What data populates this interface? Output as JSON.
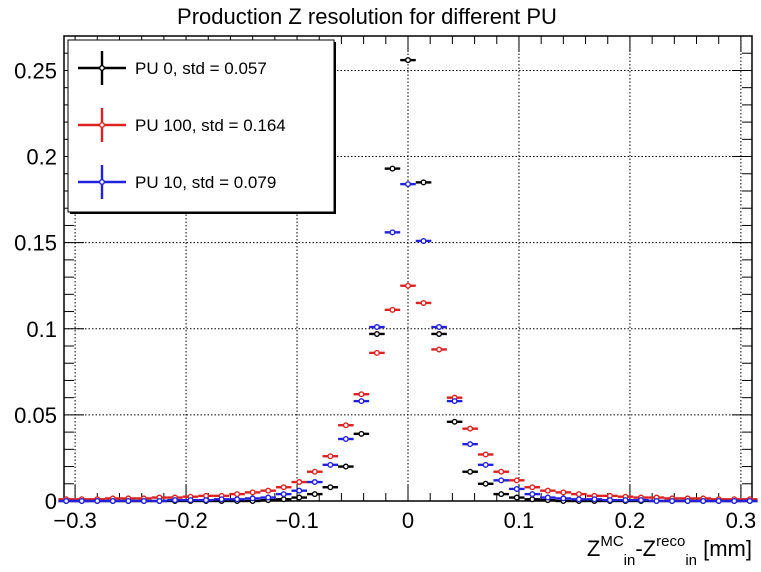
{
  "chart_data": {
    "type": "scatter",
    "title": "Production Z resolution for different PU",
    "xlabel": {
      "z": "Z",
      "sub1": "in",
      "sup1": "MC",
      "dash": "-Z",
      "sub2": "in",
      "sup2": "reco",
      "unit": " [mm]"
    },
    "ylabel": "",
    "xlim": [
      -0.31,
      0.31
    ],
    "ylim": [
      0,
      0.27
    ],
    "x_ticks": [
      -0.3,
      -0.2,
      -0.1,
      0,
      0.1,
      0.2,
      0.3
    ],
    "x_tick_labels": [
      "−0.3",
      "−0.2",
      "−0.1",
      "0",
      "0.1",
      "0.2",
      "0.3"
    ],
    "y_ticks": [
      0,
      0.05,
      0.1,
      0.15,
      0.2,
      0.25
    ],
    "y_tick_labels": [
      "0",
      "0.05",
      "0.1",
      "0.15",
      "0.2",
      "0.25"
    ],
    "grid": true,
    "legend_position": "top-left",
    "bin_width": 0.014,
    "series": [
      {
        "name": "PU 0, std = 0.057",
        "color": "#000000",
        "points": [
          [
            -0.308,
            0
          ],
          [
            -0.294,
            0
          ],
          [
            -0.28,
            0
          ],
          [
            -0.266,
            0
          ],
          [
            -0.252,
            0
          ],
          [
            -0.238,
            0
          ],
          [
            -0.224,
            0
          ],
          [
            -0.21,
            0
          ],
          [
            -0.196,
            0
          ],
          [
            -0.182,
            0
          ],
          [
            -0.168,
            0
          ],
          [
            -0.154,
            0
          ],
          [
            -0.14,
            0
          ],
          [
            -0.126,
            0.0005
          ],
          [
            -0.112,
            0.001
          ],
          [
            -0.098,
            0.002
          ],
          [
            -0.084,
            0.004
          ],
          [
            -0.07,
            0.008
          ],
          [
            -0.056,
            0.02
          ],
          [
            -0.042,
            0.039
          ],
          [
            -0.028,
            0.097
          ],
          [
            -0.014,
            0.193
          ],
          [
            0,
            0.256
          ],
          [
            0.014,
            0.185
          ],
          [
            0.028,
            0.097
          ],
          [
            0.042,
            0.046
          ],
          [
            0.056,
            0.017
          ],
          [
            0.07,
            0.01
          ],
          [
            0.084,
            0.004
          ],
          [
            0.098,
            0.002
          ],
          [
            0.112,
            0.001
          ],
          [
            0.126,
            0.0005
          ],
          [
            0.14,
            0
          ],
          [
            0.154,
            0
          ],
          [
            0.168,
            0
          ],
          [
            0.182,
            0
          ],
          [
            0.196,
            0
          ],
          [
            0.21,
            0
          ],
          [
            0.224,
            0
          ],
          [
            0.238,
            0
          ],
          [
            0.252,
            0
          ],
          [
            0.266,
            0
          ],
          [
            0.28,
            0
          ],
          [
            0.294,
            0
          ],
          [
            0.308,
            0
          ]
        ]
      },
      {
        "name": "PU 100, std = 0.164",
        "color": "#dd2222",
        "points": [
          [
            -0.308,
            0.001
          ],
          [
            -0.294,
            0.001
          ],
          [
            -0.28,
            0.001
          ],
          [
            -0.266,
            0.0015
          ],
          [
            -0.252,
            0.0015
          ],
          [
            -0.238,
            0.0015
          ],
          [
            -0.224,
            0.002
          ],
          [
            -0.21,
            0.002
          ],
          [
            -0.196,
            0.0025
          ],
          [
            -0.182,
            0.003
          ],
          [
            -0.168,
            0.003
          ],
          [
            -0.154,
            0.004
          ],
          [
            -0.14,
            0.005
          ],
          [
            -0.126,
            0.006
          ],
          [
            -0.112,
            0.008
          ],
          [
            -0.098,
            0.011
          ],
          [
            -0.084,
            0.017
          ],
          [
            -0.07,
            0.026
          ],
          [
            -0.056,
            0.044
          ],
          [
            -0.042,
            0.062
          ],
          [
            -0.028,
            0.086
          ],
          [
            -0.014,
            0.111
          ],
          [
            0,
            0.125
          ],
          [
            0.014,
            0.115
          ],
          [
            0.028,
            0.088
          ],
          [
            0.042,
            0.06
          ],
          [
            0.056,
            0.042
          ],
          [
            0.07,
            0.027
          ],
          [
            0.084,
            0.017
          ],
          [
            0.098,
            0.012
          ],
          [
            0.112,
            0.008
          ],
          [
            0.126,
            0.006
          ],
          [
            0.14,
            0.005
          ],
          [
            0.154,
            0.004
          ],
          [
            0.168,
            0.003
          ],
          [
            0.182,
            0.003
          ],
          [
            0.196,
            0.0025
          ],
          [
            0.21,
            0.002
          ],
          [
            0.224,
            0.002
          ],
          [
            0.238,
            0.0015
          ],
          [
            0.252,
            0.0015
          ],
          [
            0.266,
            0.0015
          ],
          [
            0.28,
            0.001
          ],
          [
            0.294,
            0.001
          ],
          [
            0.308,
            0.001
          ]
        ]
      },
      {
        "name": "PU 10, std = 0.079",
        "color": "#2222dd",
        "points": [
          [
            -0.308,
            0
          ],
          [
            -0.294,
            0
          ],
          [
            -0.28,
            0
          ],
          [
            -0.266,
            0
          ],
          [
            -0.252,
            0
          ],
          [
            -0.238,
            0
          ],
          [
            -0.224,
            0
          ],
          [
            -0.21,
            0.0005
          ],
          [
            -0.196,
            0.0005
          ],
          [
            -0.182,
            0.0005
          ],
          [
            -0.168,
            0.001
          ],
          [
            -0.154,
            0.001
          ],
          [
            -0.14,
            0.0015
          ],
          [
            -0.126,
            0.002
          ],
          [
            -0.112,
            0.004
          ],
          [
            -0.098,
            0.006
          ],
          [
            -0.084,
            0.011
          ],
          [
            -0.07,
            0.021
          ],
          [
            -0.056,
            0.036
          ],
          [
            -0.042,
            0.058
          ],
          [
            -0.028,
            0.101
          ],
          [
            -0.014,
            0.156
          ],
          [
            0,
            0.184
          ],
          [
            0.014,
            0.151
          ],
          [
            0.028,
            0.101
          ],
          [
            0.042,
            0.058
          ],
          [
            0.056,
            0.033
          ],
          [
            0.07,
            0.021
          ],
          [
            0.084,
            0.012
          ],
          [
            0.098,
            0.007
          ],
          [
            0.112,
            0.004
          ],
          [
            0.126,
            0.002
          ],
          [
            0.14,
            0.0015
          ],
          [
            0.154,
            0.001
          ],
          [
            0.168,
            0.001
          ],
          [
            0.182,
            0.0005
          ],
          [
            0.196,
            0.0005
          ],
          [
            0.21,
            0.0005
          ],
          [
            0.224,
            0
          ],
          [
            0.238,
            0
          ],
          [
            0.252,
            0
          ],
          [
            0.266,
            0
          ],
          [
            0.28,
            0
          ],
          [
            0.294,
            0
          ],
          [
            0.308,
            0
          ]
        ]
      }
    ]
  }
}
